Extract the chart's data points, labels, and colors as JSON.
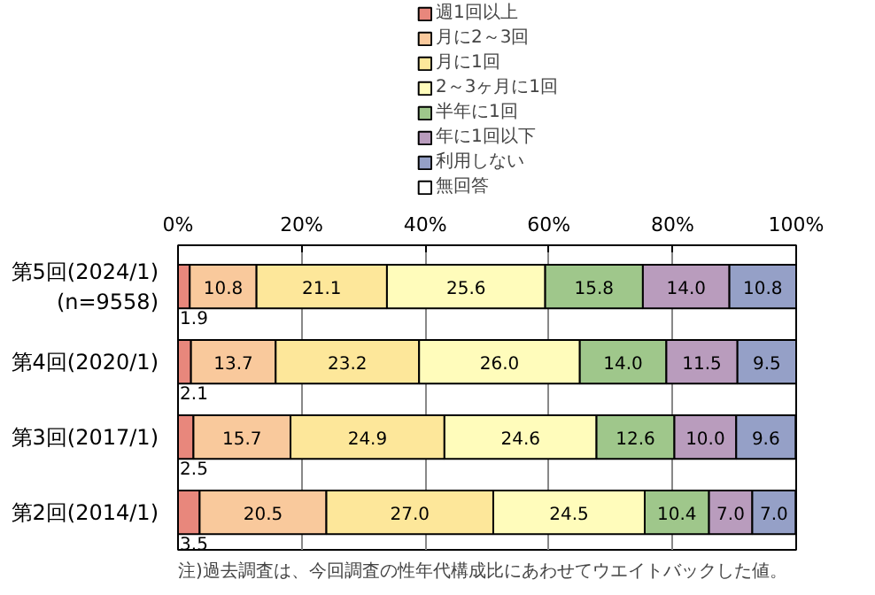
{
  "chart_data": {
    "type": "bar",
    "orientation": "horizontal",
    "stacked": true,
    "categories": [
      "第5回(2024/1)\n(n=9558)",
      "第4回(2020/1)",
      "第3回(2017/1)",
      "第2回(2014/1)"
    ],
    "series": [
      {
        "name": "週1回以上",
        "color": "#e8877c",
        "values": [
          1.9,
          2.1,
          2.5,
          3.5
        ],
        "value_labels": [
          "1.9",
          "2.1",
          "2.5",
          "3.5"
        ]
      },
      {
        "name": "月に2～3回",
        "color": "#f9c99c",
        "values": [
          10.8,
          13.7,
          15.7,
          20.5
        ],
        "value_labels": [
          "10.8",
          "13.7",
          "15.7",
          "20.5"
        ]
      },
      {
        "name": "月に1回",
        "color": "#fde79a",
        "values": [
          21.1,
          23.2,
          24.9,
          27.0
        ],
        "value_labels": [
          "21.1",
          "23.2",
          "24.9",
          "27.0"
        ]
      },
      {
        "name": "2～3ヶ月に1回",
        "color": "#fffcbb",
        "values": [
          25.6,
          26.0,
          24.6,
          24.5
        ],
        "value_labels": [
          "25.6",
          "26.0",
          "24.6",
          "24.5"
        ]
      },
      {
        "name": "半年に1回",
        "color": "#9fc78b",
        "values": [
          15.8,
          14.0,
          12.6,
          10.4
        ],
        "value_labels": [
          "15.8",
          "14.0",
          "12.6",
          "10.4"
        ]
      },
      {
        "name": "年に1回以下",
        "color": "#b99cbd",
        "values": [
          14.0,
          11.5,
          10.0,
          7.0
        ],
        "value_labels": [
          "14.0",
          "11.5",
          "10.0",
          "7.0"
        ]
      },
      {
        "name": "利用しない",
        "color": "#95a0c7",
        "values": [
          10.8,
          9.5,
          9.6,
          7.0
        ],
        "value_labels": [
          "10.8",
          "9.5",
          "9.6",
          "7.0"
        ]
      },
      {
        "name": "無回答",
        "color": "#ffffff",
        "values": [
          null,
          null,
          null,
          null
        ],
        "value_labels": [
          null,
          null,
          null,
          null
        ]
      }
    ],
    "xlim": [
      0,
      100
    ],
    "xticks": [
      {
        "value": 0,
        "label": "0%"
      },
      {
        "value": 20,
        "label": "20%"
      },
      {
        "value": 40,
        "label": "40%"
      },
      {
        "value": 60,
        "label": "60%"
      },
      {
        "value": 80,
        "label": "80%"
      },
      {
        "value": 100,
        "label": "100%"
      }
    ],
    "grid": "x",
    "legend": "top",
    "annotations": [
      "注)過去調査は、今回調査の性年代構成比にあわせてウエイトバックした値。"
    ]
  }
}
